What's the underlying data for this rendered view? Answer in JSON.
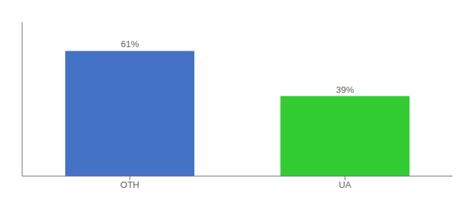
{
  "chart_data": {
    "type": "bar",
    "categories": [
      "OTH",
      "UA"
    ],
    "values": [
      61,
      39
    ],
    "value_labels": [
      "61%",
      "39%"
    ],
    "colors": [
      "#4472c4",
      "#33cc33"
    ],
    "ylim": [
      0,
      75
    ],
    "data_labels": true,
    "tick_labels": "x",
    "grid": false
  }
}
